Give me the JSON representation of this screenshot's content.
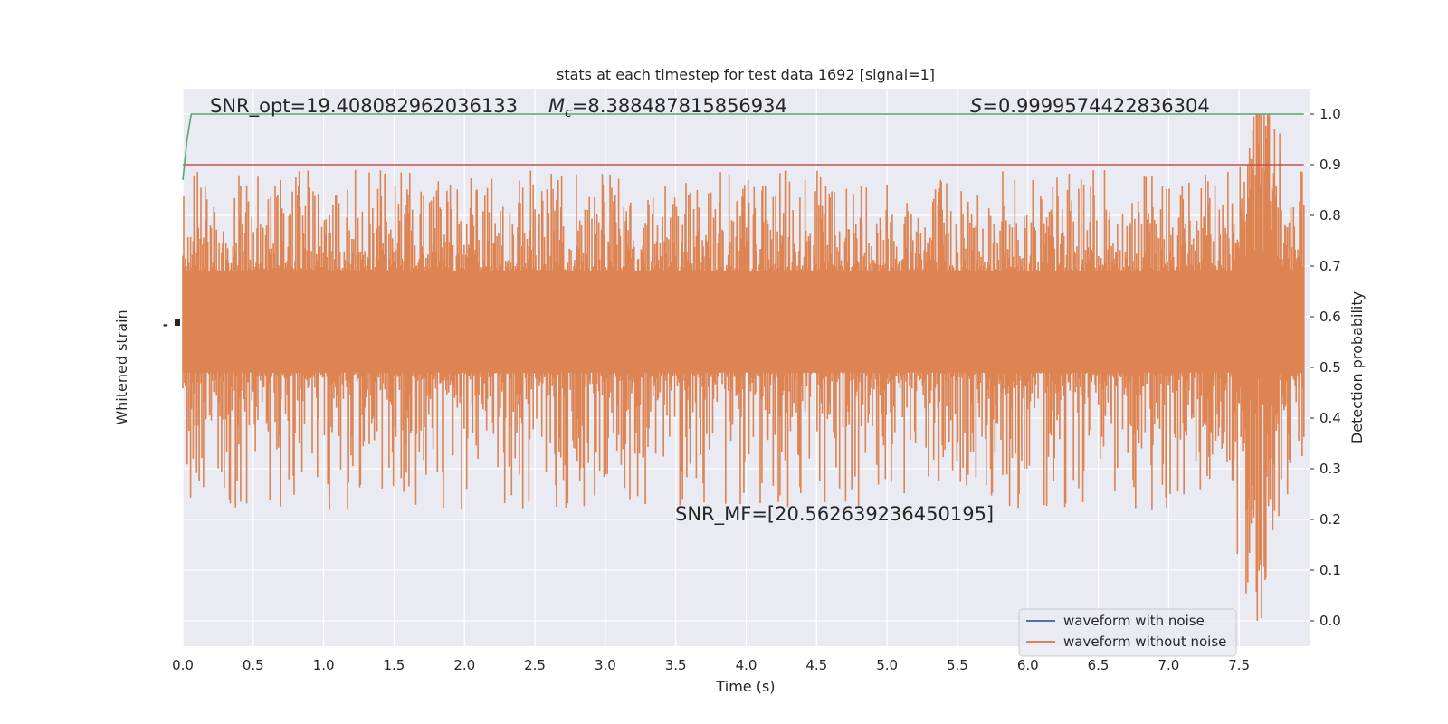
{
  "chart_data": {
    "type": "line",
    "title": "stats at each timestep for test data 1692 [signal=1]",
    "xlabel": "Time (s)",
    "ylabel_left": "Whitened strain",
    "ylabel_right": "Detection probability",
    "xlim": [
      0.0,
      8.0
    ],
    "ylim_right": [
      -0.05,
      1.05
    ],
    "x_ticks": [
      "0.0",
      "0.5",
      "1.0",
      "1.5",
      "2.0",
      "2.5",
      "3.0",
      "3.5",
      "4.0",
      "4.5",
      "5.0",
      "5.5",
      "6.0",
      "6.5",
      "7.0",
      "7.5"
    ],
    "y_ticks_right": [
      "0.0",
      "0.1",
      "0.2",
      "0.3",
      "0.4",
      "0.5",
      "0.6",
      "0.7",
      "0.8",
      "0.9",
      "1.0"
    ],
    "left_tick_glyphs": "-\u0001\u0000",
    "grid": true,
    "legend_position": "lower-right",
    "annotations": {
      "snr_opt": "SNR_opt=19.408082962036133",
      "mc_symbol": "M",
      "mc_subscript": "c",
      "mc_value": "=8.388487815856934",
      "s_symbol": "S",
      "s_value": "=0.9999574422836304",
      "snr_mf": "SNR_MF=[20.562639236450195]"
    },
    "series": [
      {
        "name": "waveform with noise",
        "color": "#4c72b0",
        "values": []
      },
      {
        "name": "waveform without noise",
        "color": "#dd8452",
        "band_center": 0.59,
        "band_half_width": 0.1,
        "spike_min": 0.22,
        "spike_max": 0.89,
        "merger_time": 7.65,
        "values": []
      }
    ],
    "detection_probability": {
      "color": "#55a868",
      "x": [
        0.0,
        0.03,
        0.06,
        7.96
      ],
      "y": [
        0.87,
        0.95,
        1.0,
        1.0
      ]
    },
    "threshold": {
      "color": "#c44e52",
      "value": 0.9
    }
  }
}
